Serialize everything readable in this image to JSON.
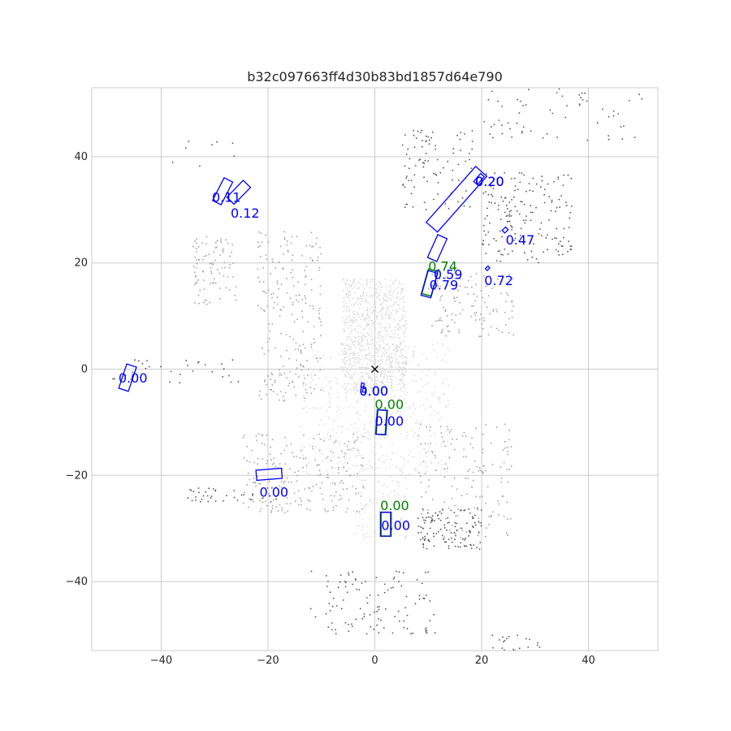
{
  "chart_data": {
    "type": "scatter",
    "title": "b32c097663ff4d30b83bd1857d64e790",
    "xlabel": "",
    "ylabel": "",
    "xlim": [
      -53,
      53
    ],
    "ylim": [
      -53,
      53
    ],
    "grid": true,
    "xticks": [
      -40,
      -20,
      0,
      20,
      40
    ],
    "yticks": [
      -40,
      -20,
      0,
      20,
      40
    ],
    "xtick_labels": [
      "−40",
      "−20",
      "0",
      "20",
      "40"
    ],
    "ytick_labels": [
      "−40",
      "−20",
      "0",
      "20",
      "40"
    ],
    "colors": {
      "prediction": "#0000ff",
      "ground_truth": "#008000",
      "near_points": "#dcdcdc",
      "mid_points": "#a0a0a0",
      "far_points": "#505050",
      "ego": "#000000"
    },
    "ego": {
      "x": 0,
      "y": 0,
      "marker": "x"
    },
    "predictions": [
      {
        "cx": -28.5,
        "cy": 33.5,
        "w": 1.8,
        "l": 4.8,
        "yaw": 1.1,
        "score": "0.11",
        "tx": -30.5,
        "ty": 31.5
      },
      {
        "cx": -25.5,
        "cy": 33.3,
        "w": 1.9,
        "l": 4.4,
        "yaw": 0.8,
        "score": "0.12",
        "tx": -27,
        "ty": 28.5
      },
      {
        "cx": 15.3,
        "cy": 32.0,
        "w": 2.8,
        "l": 14.0,
        "yaw": 0.85,
        "score": "0.20",
        "tx": 18.8,
        "ty": 34.5
      },
      {
        "cx": 19.5,
        "cy": 35.8,
        "w": 0.9,
        "l": 2.0,
        "yaw": 0.85,
        "score": "0.20",
        "tx": 18.8,
        "ty": 34.5
      },
      {
        "cx": 24.4,
        "cy": 26.2,
        "w": 0.7,
        "l": 0.9,
        "yaw": 0.8,
        "score": "0.47",
        "tx": 24.5,
        "ty": 23.5
      },
      {
        "cx": 21.1,
        "cy": 19.0,
        "w": 0.5,
        "l": 0.7,
        "yaw": 0.8,
        "score": "0.72",
        "tx": 20.5,
        "ty": 15.8
      },
      {
        "cx": 11.7,
        "cy": 22.8,
        "w": 1.9,
        "l": 4.7,
        "yaw": 1.15,
        "score": "0.59",
        "tx": 11.0,
        "ty": 17.0
      },
      {
        "cx": 10.2,
        "cy": 16.0,
        "w": 1.9,
        "l": 4.8,
        "yaw": 1.3,
        "score": "0.79",
        "tx": 10.2,
        "ty": 15.0
      },
      {
        "cx": -46.3,
        "cy": -1.6,
        "w": 1.9,
        "l": 4.8,
        "yaw": 1.25,
        "score": "0.00",
        "tx": -48.0,
        "ty": -2.5
      },
      {
        "cx": -2.3,
        "cy": -3.0,
        "w": 0.5,
        "l": 0.7,
        "yaw": 1.35,
        "score": "0.00",
        "tx": -2.9,
        "ty": -5.0
      },
      {
        "cx": -2.0,
        "cy": -4.0,
        "w": 0.5,
        "l": 0.7,
        "yaw": 1.35,
        "score": "0.00",
        "tx": -2.9,
        "ty": -5.0
      },
      {
        "cx": 1.3,
        "cy": -10.0,
        "w": 1.8,
        "l": 4.6,
        "yaw": 1.5,
        "score": "0.00",
        "tx": 0.0,
        "ty": -10.6
      },
      {
        "cx": -19.8,
        "cy": -19.8,
        "w": 1.9,
        "l": 4.8,
        "yaw": 0.08,
        "score": "0.00",
        "tx": -21.6,
        "ty": -24.0
      },
      {
        "cx": 2.0,
        "cy": -29.2,
        "w": 1.9,
        "l": 4.5,
        "yaw": 1.57,
        "score": "0.00",
        "tx": 1.2,
        "ty": -30.3
      }
    ],
    "ground_truth": [
      {
        "cx": 10.3,
        "cy": 16.3,
        "w": 1.8,
        "l": 4.8,
        "yaw": 1.3,
        "score": "0.74",
        "tx": 10.0,
        "ty": 18.5
      },
      {
        "cx": 1.2,
        "cy": -10.0,
        "w": 1.8,
        "l": 4.6,
        "yaw": 1.5,
        "score": "0.00",
        "tx": 0.0,
        "ty": -7.5
      },
      {
        "cx": 2.1,
        "cy": -29.2,
        "w": 1.9,
        "l": 4.5,
        "yaw": 1.57,
        "score": "0.00",
        "tx": 1.0,
        "ty": -26.5
      }
    ],
    "point_clusters": [
      {
        "shade": "near",
        "x": [
          -6,
          6
        ],
        "y": [
          -4,
          17
        ],
        "n": 900,
        "seed": 7
      },
      {
        "shade": "near",
        "x": [
          -14,
          14
        ],
        "y": [
          -20,
          5
        ],
        "n": 500,
        "seed": 11
      },
      {
        "shade": "near",
        "x": [
          -4,
          6
        ],
        "y": [
          -32,
          -18
        ],
        "n": 120,
        "seed": 13
      },
      {
        "shade": "mid",
        "x": [
          -22,
          -10
        ],
        "y": [
          -6,
          26
        ],
        "n": 220,
        "seed": 17
      },
      {
        "shade": "mid",
        "x": [
          -25,
          -2
        ],
        "y": [
          -27,
          -12
        ],
        "n": 220,
        "seed": 19
      },
      {
        "shade": "mid",
        "x": [
          -34,
          -26
        ],
        "y": [
          12,
          25
        ],
        "n": 90,
        "seed": 23
      },
      {
        "shade": "mid",
        "x": [
          8,
          26
        ],
        "y": [
          -32,
          -10
        ],
        "n": 160,
        "seed": 29
      },
      {
        "shade": "mid",
        "x": [
          10,
          26
        ],
        "y": [
          6,
          18
        ],
        "n": 120,
        "seed": 31
      },
      {
        "shade": "far",
        "x": [
          5,
          19
        ],
        "y": [
          30,
          45
        ],
        "n": 90,
        "seed": 37
      },
      {
        "shade": "far",
        "x": [
          20,
          37
        ],
        "y": [
          20,
          37
        ],
        "n": 170,
        "seed": 41
      },
      {
        "shade": "far",
        "x": [
          20,
          50
        ],
        "y": [
          43,
          53
        ],
        "n": 60,
        "seed": 43
      },
      {
        "shade": "far",
        "x": [
          -12,
          12
        ],
        "y": [
          -50,
          -38
        ],
        "n": 110,
        "seed": 47
      },
      {
        "shade": "far",
        "x": [
          8,
          20
        ],
        "y": [
          -34,
          -26
        ],
        "n": 120,
        "seed": 53
      },
      {
        "shade": "far",
        "x": [
          22,
          31
        ],
        "y": [
          -53,
          -50
        ],
        "n": 20,
        "seed": 59
      },
      {
        "shade": "far",
        "x": [
          -50,
          -25
        ],
        "y": [
          -3,
          2
        ],
        "n": 30,
        "seed": 61
      },
      {
        "shade": "far",
        "x": [
          -35,
          -18
        ],
        "y": [
          -25,
          -22
        ],
        "n": 40,
        "seed": 67
      },
      {
        "shade": "far",
        "x": [
          -38,
          -26
        ],
        "y": [
          35,
          46
        ],
        "n": 8,
        "seed": 71
      }
    ]
  }
}
